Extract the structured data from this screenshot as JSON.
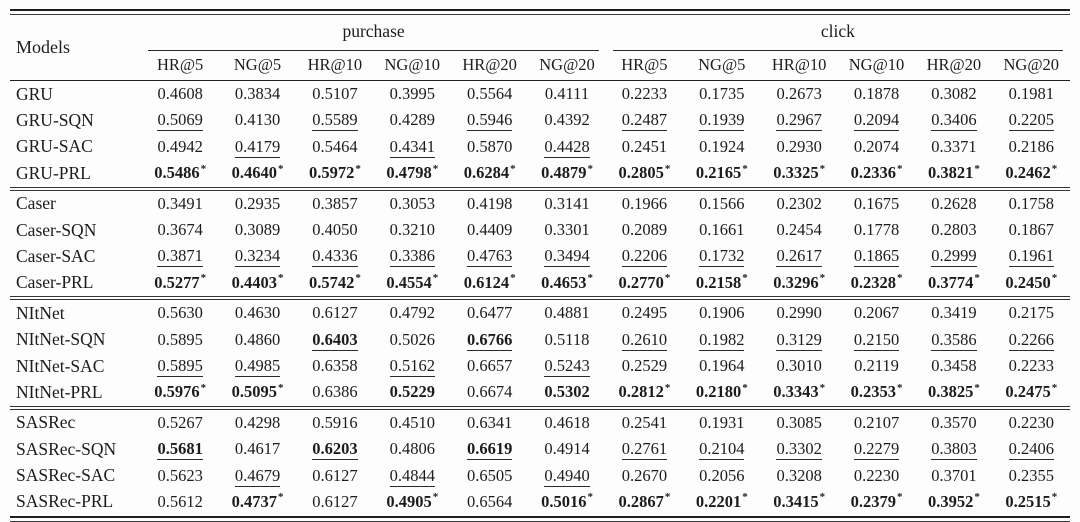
{
  "header": {
    "models_label": "Models",
    "groups": [
      {
        "label": "purchase",
        "metrics": [
          "HR@5",
          "NG@5",
          "HR@10",
          "NG@10",
          "HR@20",
          "NG@20"
        ]
      },
      {
        "label": "click",
        "metrics": [
          "HR@5",
          "NG@5",
          "HR@10",
          "NG@10",
          "HR@20",
          "NG@20"
        ]
      }
    ]
  },
  "cell_format_legend": "flags after | : b=bold, u=underlined, *=asterisk superscript",
  "blocks": [
    {
      "rows": [
        {
          "model": "GRU",
          "cells": [
            "0.4608",
            "0.3834",
            "0.5107",
            "0.3995",
            "0.5564",
            "0.4111",
            "0.2233",
            "0.1735",
            "0.2673",
            "0.1878",
            "0.3082",
            "0.1981"
          ]
        },
        {
          "model": "GRU-SQN",
          "cells": [
            "0.5069|u",
            "0.4130",
            "0.5589|u",
            "0.4289",
            "0.5946|u",
            "0.4392",
            "0.2487|u",
            "0.1939|u",
            "0.2967|u",
            "0.2094|u",
            "0.3406|u",
            "0.2205|u"
          ]
        },
        {
          "model": "GRU-SAC",
          "cells": [
            "0.4942",
            "0.4179|u",
            "0.5464",
            "0.4341|u",
            "0.5870",
            "0.4428|u",
            "0.2451",
            "0.1924",
            "0.2930",
            "0.2074",
            "0.3371",
            "0.2186"
          ]
        },
        {
          "model": "GRU-PRL",
          "cells": [
            "0.5486|b*",
            "0.4640|b*",
            "0.5972|b*",
            "0.4798|b*",
            "0.6284|b*",
            "0.4879|b*",
            "0.2805|b*",
            "0.2165|b*",
            "0.3325|b*",
            "0.2336|b*",
            "0.3821|b*",
            "0.2462|b*"
          ]
        }
      ]
    },
    {
      "rows": [
        {
          "model": "Caser",
          "cells": [
            "0.3491",
            "0.2935",
            "0.3857",
            "0.3053",
            "0.4198",
            "0.3141",
            "0.1966",
            "0.1566",
            "0.2302",
            "0.1675",
            "0.2628",
            "0.1758"
          ]
        },
        {
          "model": "Caser-SQN",
          "cells": [
            "0.3674",
            "0.3089",
            "0.4050",
            "0.3210",
            "0.4409",
            "0.3301",
            "0.2089",
            "0.1661",
            "0.2454",
            "0.1778",
            "0.2803",
            "0.1867"
          ]
        },
        {
          "model": "Caser-SAC",
          "cells": [
            "0.3871|u",
            "0.3234|u",
            "0.4336|u",
            "0.3386|u",
            "0.4763|u",
            "0.3494|u",
            "0.2206|u",
            "0.1732|u",
            "0.2617|u",
            "0.1865|u",
            "0.2999|u",
            "0.1961|u"
          ]
        },
        {
          "model": "Caser-PRL",
          "cells": [
            "0.5277|b*",
            "0.4403|b*",
            "0.5742|b*",
            "0.4554|b*",
            "0.6124|b*",
            "0.4653|b*",
            "0.2770|b*",
            "0.2158|b*",
            "0.3296|b*",
            "0.2328|b*",
            "0.3774|b*",
            "0.2450|b*"
          ]
        }
      ]
    },
    {
      "rows": [
        {
          "model": "NItNet",
          "cells": [
            "0.5630",
            "0.4630",
            "0.6127",
            "0.4792",
            "0.6477",
            "0.4881",
            "0.2495",
            "0.1906",
            "0.2990",
            "0.2067",
            "0.3419",
            "0.2175"
          ]
        },
        {
          "model": "NItNet-SQN",
          "cells": [
            "0.5895",
            "0.4860",
            "0.6403|bu",
            "0.5026",
            "0.6766|bu",
            "0.5118",
            "0.2610|u",
            "0.1982|u",
            "0.3129|u",
            "0.2150|u",
            "0.3586|u",
            "0.2266|u"
          ]
        },
        {
          "model": "NItNet-SAC",
          "cells": [
            "0.5895|u",
            "0.4985|u",
            "0.6358",
            "0.5162|u",
            "0.6657",
            "0.5243|u",
            "0.2529",
            "0.1964",
            "0.3010",
            "0.2119",
            "0.3458",
            "0.2233"
          ]
        },
        {
          "model": "NItNet-PRL",
          "cells": [
            "0.5976|b*",
            "0.5095|b*",
            "0.6386",
            "0.5229|b",
            "0.6674",
            "0.5302|b",
            "0.2812|b*",
            "0.2180|b*",
            "0.3343|b*",
            "0.2353|b*",
            "0.3825|b*",
            "0.2475|b*"
          ]
        }
      ]
    },
    {
      "rows": [
        {
          "model": "SASRec",
          "cells": [
            "0.5267",
            "0.4298",
            "0.5916",
            "0.4510",
            "0.6341",
            "0.4618",
            "0.2541",
            "0.1931",
            "0.3085",
            "0.2107",
            "0.3570",
            "0.2230"
          ]
        },
        {
          "model": "SASRec-SQN",
          "cells": [
            "0.5681|bu",
            "0.4617",
            "0.6203|bu",
            "0.4806",
            "0.6619|bu",
            "0.4914",
            "0.2761|u",
            "0.2104|u",
            "0.3302|u",
            "0.2279|u",
            "0.3803|u",
            "0.2406|u"
          ]
        },
        {
          "model": "SASRec-SAC",
          "cells": [
            "0.5623",
            "0.4679|u",
            "0.6127",
            "0.4844|u",
            "0.6505",
            "0.4940|u",
            "0.2670",
            "0.2056",
            "0.3208",
            "0.2230",
            "0.3701",
            "0.2355"
          ]
        },
        {
          "model": "SASRec-PRL",
          "cells": [
            "0.5612",
            "0.4737|b*",
            "0.6127",
            "0.4905|b*",
            "0.6564",
            "0.5016|b*",
            "0.2867|b*",
            "0.2201|b*",
            "0.3415|b*",
            "0.2379|b*",
            "0.3952|b*",
            "0.2515|b*"
          ]
        }
      ]
    }
  ]
}
